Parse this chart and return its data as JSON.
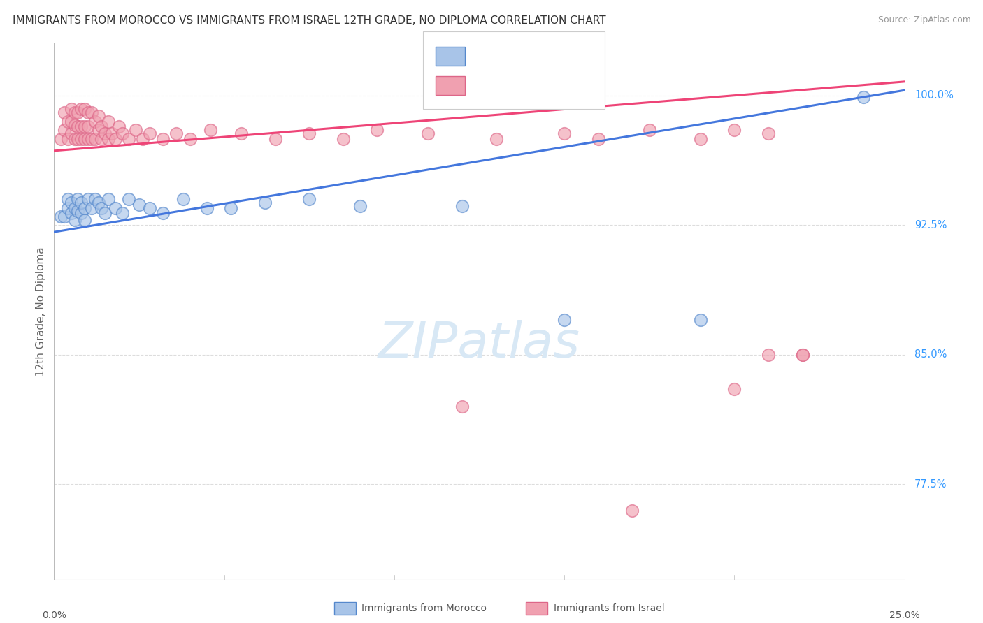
{
  "title": "IMMIGRANTS FROM MOROCCO VS IMMIGRANTS FROM ISRAEL 12TH GRADE, NO DIPLOMA CORRELATION CHART",
  "source": "Source: ZipAtlas.com",
  "ylabel": "12th Grade, No Diploma",
  "ytick_labels": [
    "100.0%",
    "92.5%",
    "85.0%",
    "77.5%"
  ],
  "ytick_values": [
    1.0,
    0.925,
    0.85,
    0.775
  ],
  "xlim": [
    0.0,
    0.25
  ],
  "ylim": [
    0.72,
    1.03
  ],
  "legend_label_blue": "Immigrants from Morocco",
  "legend_label_pink": "Immigrants from Israel",
  "color_blue_fill": "#A8C4E8",
  "color_blue_edge": "#5588CC",
  "color_pink_fill": "#F0A0B0",
  "color_pink_edge": "#DD6688",
  "color_blue_line": "#4477DD",
  "color_pink_line": "#EE4477",
  "color_blue_text": "#3366CC",
  "color_pink_text": "#DD3366",
  "color_title": "#333333",
  "color_source": "#999999",
  "color_grid": "#DDDDDD",
  "color_ytick": "#3399FF",
  "color_axis_label": "#666666",
  "watermark_text": "ZIPatlas",
  "watermark_color": "#D8E8F5",
  "blue_line_x0": 0.0,
  "blue_line_y0": 0.921,
  "blue_line_x1": 0.25,
  "blue_line_y1": 1.003,
  "pink_line_x0": 0.0,
  "pink_line_y0": 0.968,
  "pink_line_x1": 0.25,
  "pink_line_y1": 1.008,
  "blue_x": [
    0.002,
    0.003,
    0.004,
    0.004,
    0.005,
    0.005,
    0.006,
    0.006,
    0.007,
    0.007,
    0.008,
    0.008,
    0.009,
    0.009,
    0.01,
    0.011,
    0.012,
    0.013,
    0.014,
    0.015,
    0.016,
    0.018,
    0.02,
    0.022,
    0.025,
    0.028,
    0.032,
    0.038,
    0.045,
    0.052,
    0.062,
    0.075,
    0.09,
    0.12,
    0.15,
    0.19,
    0.238
  ],
  "blue_y": [
    0.93,
    0.93,
    0.935,
    0.94,
    0.932,
    0.938,
    0.928,
    0.935,
    0.933,
    0.94,
    0.932,
    0.938,
    0.928,
    0.935,
    0.94,
    0.935,
    0.94,
    0.938,
    0.935,
    0.932,
    0.94,
    0.935,
    0.932,
    0.94,
    0.937,
    0.935,
    0.932,
    0.94,
    0.935,
    0.935,
    0.938,
    0.94,
    0.936,
    0.936,
    0.87,
    0.87,
    0.999
  ],
  "pink_x": [
    0.002,
    0.003,
    0.003,
    0.004,
    0.004,
    0.005,
    0.005,
    0.005,
    0.006,
    0.006,
    0.006,
    0.007,
    0.007,
    0.007,
    0.008,
    0.008,
    0.008,
    0.009,
    0.009,
    0.009,
    0.01,
    0.01,
    0.01,
    0.011,
    0.011,
    0.012,
    0.012,
    0.013,
    0.013,
    0.014,
    0.014,
    0.015,
    0.016,
    0.016,
    0.017,
    0.018,
    0.019,
    0.02,
    0.022,
    0.024,
    0.026,
    0.028,
    0.032,
    0.036,
    0.04,
    0.046,
    0.055,
    0.065,
    0.075,
    0.085,
    0.095,
    0.11,
    0.13,
    0.15,
    0.16,
    0.175,
    0.19,
    0.2,
    0.21,
    0.22,
    0.22,
    0.21,
    0.2,
    0.17,
    0.12
  ],
  "pink_y": [
    0.975,
    0.98,
    0.99,
    0.975,
    0.985,
    0.978,
    0.985,
    0.992,
    0.975,
    0.983,
    0.99,
    0.975,
    0.982,
    0.99,
    0.975,
    0.982,
    0.992,
    0.975,
    0.982,
    0.992,
    0.975,
    0.982,
    0.99,
    0.975,
    0.99,
    0.975,
    0.985,
    0.98,
    0.988,
    0.975,
    0.982,
    0.978,
    0.975,
    0.985,
    0.978,
    0.975,
    0.982,
    0.978,
    0.975,
    0.98,
    0.975,
    0.978,
    0.975,
    0.978,
    0.975,
    0.98,
    0.978,
    0.975,
    0.978,
    0.975,
    0.98,
    0.978,
    0.975,
    0.978,
    0.975,
    0.98,
    0.975,
    0.98,
    0.978,
    0.85,
    0.85,
    0.85,
    0.83,
    0.76,
    0.82
  ]
}
